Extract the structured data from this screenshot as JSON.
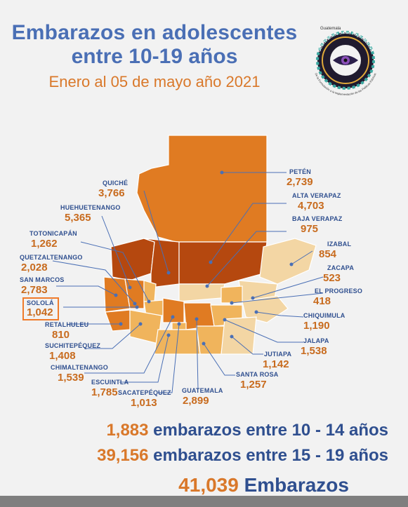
{
  "header": {
    "title_line1": "Embarazos en adolescentes",
    "title_line2": "entre 10-19 años",
    "subtitle": "Enero al 05 de mayo año 2021"
  },
  "logo": {
    "top_text": "Guatemala",
    "ring_text": "Observatorio Salud Reproductiva",
    "bottom_text": "De la Formulación a la Implementación de las Políticas Públicas",
    "icon": "eye-icon"
  },
  "departments": [
    {
      "name": "PETÉN",
      "value": "2,739"
    },
    {
      "name": "ALTA VERAPAZ",
      "value": "4,703"
    },
    {
      "name": "BAJA VERAPAZ",
      "value": "975"
    },
    {
      "name": "IZABAL",
      "value": "854"
    },
    {
      "name": "ZACAPA",
      "value": "523"
    },
    {
      "name": "EL PROGRESO",
      "value": "418"
    },
    {
      "name": "CHIQUIMULA",
      "value": "1,190"
    },
    {
      "name": "JALAPA",
      "value": "1,538"
    },
    {
      "name": "JUTIAPA",
      "value": "1,142"
    },
    {
      "name": "SANTA ROSA",
      "value": "1,257"
    },
    {
      "name": "GUATEMALA",
      "value": "2,899"
    },
    {
      "name": "SACATEPÉQUEZ",
      "value": "1,013"
    },
    {
      "name": "ESCUINTLA",
      "value": "1,785"
    },
    {
      "name": "CHIMALTENANGO",
      "value": "1,539"
    },
    {
      "name": "SUCHITEPÉQUEZ",
      "value": "1,408"
    },
    {
      "name": "RETALHULEU",
      "value": "810"
    },
    {
      "name": "SOLOLÁ",
      "value": "1,042"
    },
    {
      "name": "SAN MARCOS",
      "value": "2,783"
    },
    {
      "name": "QUETZALTENANGO",
      "value": "2,028"
    },
    {
      "name": "TOTONICAPÁN",
      "value": "1,262"
    },
    {
      "name": "HUEHUETENANGO",
      "value": "5,365"
    },
    {
      "name": "QUICHÉ",
      "value": "3,766"
    }
  ],
  "highlighted_department": "SOLOLÁ",
  "colors": {
    "title_blue": "#4a6fb5",
    "accent_orange": "#d9782a",
    "highlight_box": "#f07b2a",
    "map_dark": "#b5480f",
    "map_mid": "#e07b22",
    "map_light": "#f0b45c",
    "map_pale": "#f3d6a4"
  },
  "totals": {
    "row1_num": "1,883",
    "row1_text": "embarazos entre 10 - 14 años",
    "row2_num": "39,156",
    "row2_text": "embarazos entre 15 - 19 años",
    "row3_num": "41,039",
    "row3_text": "Embarazos"
  }
}
